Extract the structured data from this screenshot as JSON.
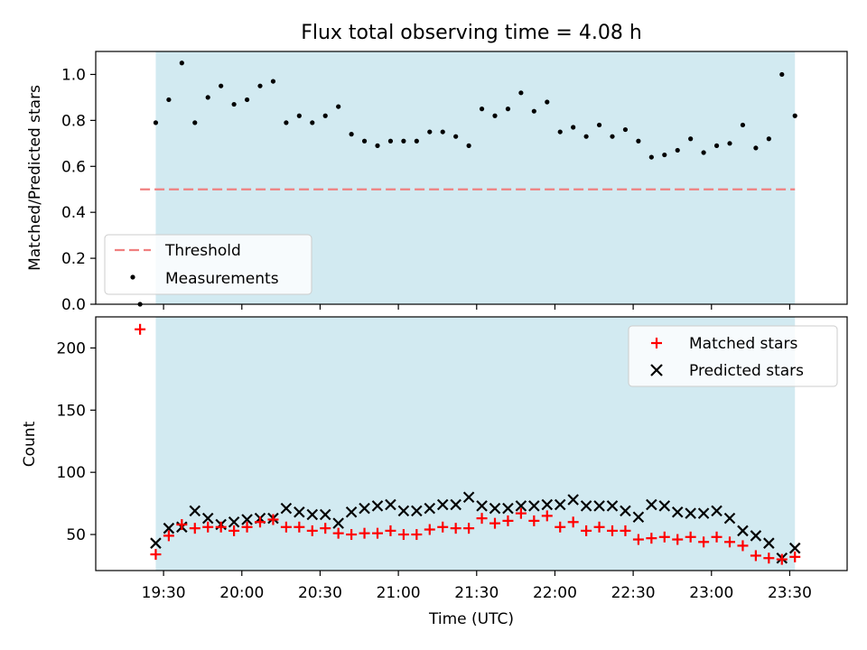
{
  "title": "Flux total observing time = 4.08 h",
  "colors": {
    "observing_span": "#add8e6",
    "threshold": "#f08080",
    "measurement": "#000000",
    "matched": "#ff0000",
    "predicted": "#000000"
  },
  "chart_data": [
    {
      "type": "scatter",
      "panel": "top",
      "ylabel": "Matched/Predicted stars",
      "ylim": [
        0,
        1.1
      ],
      "yticks": [
        "0.0",
        "0.2",
        "0.4",
        "0.6",
        "0.8",
        "1.0"
      ],
      "xlim": [
        "19:04",
        "23:52"
      ],
      "observing_span": [
        "19:27",
        "23:32"
      ],
      "threshold": {
        "label": "Threshold",
        "value": 0.5,
        "x_range": [
          "19:21",
          "23:32"
        ],
        "style": "dashed"
      },
      "legend": {
        "placement": "lower-left",
        "entries": [
          "Threshold",
          "Measurements"
        ]
      },
      "series": [
        {
          "name": "Measurements",
          "marker": "dot",
          "x": [
            "19:21",
            "19:27",
            "19:32",
            "19:37",
            "19:42",
            "19:47",
            "19:52",
            "19:57",
            "20:02",
            "20:07",
            "20:12",
            "20:17",
            "20:22",
            "20:27",
            "20:32",
            "20:37",
            "20:42",
            "20:47",
            "20:52",
            "20:57",
            "21:02",
            "21:07",
            "21:12",
            "21:17",
            "21:22",
            "21:27",
            "21:32",
            "21:37",
            "21:42",
            "21:47",
            "21:52",
            "21:57",
            "22:02",
            "22:07",
            "22:12",
            "22:17",
            "22:22",
            "22:27",
            "22:32",
            "22:37",
            "22:42",
            "22:47",
            "22:52",
            "22:57",
            "23:02",
            "23:07",
            "23:12",
            "23:17",
            "23:22",
            "23:27",
            "23:32"
          ],
          "values": [
            0.0,
            0.79,
            0.89,
            1.05,
            0.79,
            0.9,
            0.95,
            0.87,
            0.89,
            0.95,
            0.97,
            0.79,
            0.82,
            0.79,
            0.82,
            0.86,
            0.74,
            0.71,
            0.69,
            0.71,
            0.71,
            0.71,
            0.75,
            0.75,
            0.73,
            0.69,
            0.85,
            0.82,
            0.85,
            0.92,
            0.84,
            0.88,
            0.75,
            0.77,
            0.73,
            0.78,
            0.73,
            0.76,
            0.71,
            0.64,
            0.65,
            0.67,
            0.72,
            0.66,
            0.69,
            0.7,
            0.78,
            0.68,
            0.72,
            1.0,
            0.82
          ]
        }
      ]
    },
    {
      "type": "scatter",
      "panel": "bottom",
      "xlabel": "Time (UTC)",
      "ylabel": "Count",
      "ylim": [
        21,
        225
      ],
      "yticks": [
        "50",
        "100",
        "150",
        "200"
      ],
      "xticks": [
        "19:30",
        "20:00",
        "20:30",
        "21:00",
        "21:30",
        "22:00",
        "22:30",
        "23:00",
        "23:30"
      ],
      "xlim": [
        "19:04",
        "23:52"
      ],
      "observing_span": [
        "19:27",
        "23:32"
      ],
      "legend": {
        "placement": "top-right",
        "entries": [
          "Matched stars",
          "Predicted stars"
        ]
      },
      "series": [
        {
          "name": "Matched stars",
          "marker": "plus",
          "x": [
            "19:21",
            "19:27",
            "19:32",
            "19:37",
            "19:42",
            "19:47",
            "19:52",
            "19:57",
            "20:02",
            "20:07",
            "20:12",
            "20:17",
            "20:22",
            "20:27",
            "20:32",
            "20:37",
            "20:42",
            "20:47",
            "20:52",
            "20:57",
            "21:02",
            "21:07",
            "21:12",
            "21:17",
            "21:22",
            "21:27",
            "21:32",
            "21:37",
            "21:42",
            "21:47",
            "21:52",
            "21:57",
            "22:02",
            "22:07",
            "22:12",
            "22:17",
            "22:22",
            "22:27",
            "22:32",
            "22:37",
            "22:42",
            "22:47",
            "22:52",
            "22:57",
            "23:02",
            "23:07",
            "23:12",
            "23:17",
            "23:22",
            "23:27",
            "23:32"
          ],
          "values": [
            215,
            34,
            49,
            58,
            55,
            56,
            56,
            53,
            56,
            60,
            62,
            56,
            56,
            53,
            55,
            51,
            50,
            51,
            51,
            53,
            50,
            50,
            54,
            56,
            55,
            55,
            63,
            59,
            61,
            67,
            61,
            65,
            56,
            60,
            53,
            56,
            53,
            53,
            46,
            47,
            48,
            46,
            48,
            44,
            48,
            44,
            41,
            33,
            31,
            30,
            32
          ]
        },
        {
          "name": "Predicted stars",
          "marker": "x",
          "x": [
            "19:27",
            "19:32",
            "19:37",
            "19:42",
            "19:47",
            "19:52",
            "19:57",
            "20:02",
            "20:07",
            "20:12",
            "20:17",
            "20:22",
            "20:27",
            "20:32",
            "20:37",
            "20:42",
            "20:47",
            "20:52",
            "20:57",
            "21:02",
            "21:07",
            "21:12",
            "21:17",
            "21:22",
            "21:27",
            "21:32",
            "21:37",
            "21:42",
            "21:47",
            "21:52",
            "21:57",
            "22:02",
            "22:07",
            "22:12",
            "22:17",
            "22:22",
            "22:27",
            "22:32",
            "22:37",
            "22:42",
            "22:47",
            "22:52",
            "22:57",
            "23:02",
            "23:07",
            "23:12",
            "23:17",
            "23:22",
            "23:27",
            "23:32"
          ],
          "values": [
            43,
            55,
            56,
            69,
            63,
            58,
            60,
            62,
            63,
            63,
            71,
            68,
            66,
            66,
            59,
            68,
            71,
            73,
            74,
            69,
            69,
            71,
            74,
            74,
            80,
            73,
            71,
            71,
            73,
            73,
            74,
            74,
            78,
            73,
            73,
            73,
            69,
            64,
            74,
            73,
            68,
            67,
            67,
            69,
            63,
            53,
            49,
            43,
            31,
            39
          ]
        }
      ]
    }
  ]
}
